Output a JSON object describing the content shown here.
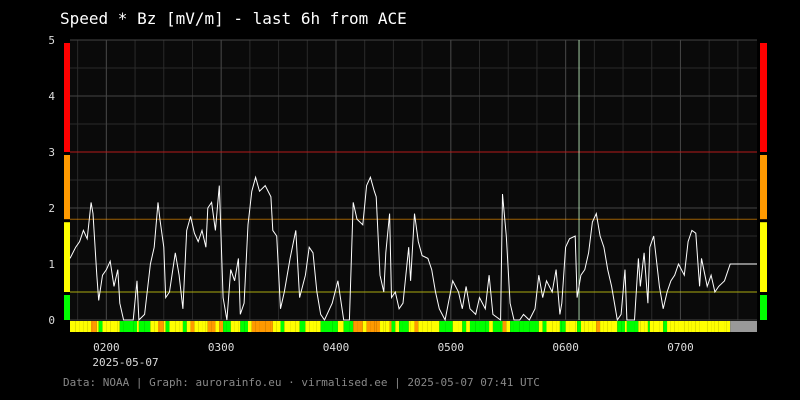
{
  "chart_data": {
    "type": "line",
    "title": "Speed * Bz [mV/m] - last 6h from ACE",
    "date_label": "2025-05-07",
    "footer": "Data: NOAA | Graph: aurorainfo.eu · virmalised.ee | 2025-05-07 07:41 UTC",
    "xlim": [
      101,
      460
    ],
    "xticks": [
      {
        "value": 120,
        "label": "0200"
      },
      {
        "value": 180,
        "label": "0300"
      },
      {
        "value": 240,
        "label": "0400"
      },
      {
        "value": 300,
        "label": "0500"
      },
      {
        "value": 360,
        "label": "0600"
      },
      {
        "value": 420,
        "label": "0700"
      }
    ],
    "ylim": [
      0,
      5
    ],
    "yticks": [
      0,
      1,
      2,
      3,
      4,
      5
    ],
    "grid": true,
    "x_minor_step": 15,
    "y_minor_step": 0.5,
    "marker_x": 367,
    "stale_after": 446,
    "stale_color": "#999999",
    "levels": [
      {
        "from": 0,
        "color": "#00ff00"
      },
      {
        "from": 0.5,
        "color": "#ffff00"
      },
      {
        "from": 1.8,
        "color": "#ff9900"
      },
      {
        "from": 3,
        "color": "#ff0000"
      }
    ],
    "series": [
      {
        "name": "Speed * Bz",
        "color": "#ffffff",
        "x": [
          101,
          104,
          106,
          108,
          110,
          112,
          113,
          115,
          116,
          118,
          120,
          122,
          124,
          126,
          127,
          129,
          134,
          136,
          137,
          140,
          143,
          145,
          147,
          148,
          150,
          151,
          153,
          156,
          158,
          160,
          162,
          164,
          166,
          168,
          170,
          172,
          173,
          175,
          177,
          179,
          181,
          183,
          185,
          187,
          189,
          190,
          192,
          194,
          196,
          198,
          200,
          203,
          206,
          207,
          209,
          211,
          213,
          216,
          219,
          221,
          224,
          226,
          228,
          230,
          232,
          234,
          238,
          241,
          244,
          247,
          249,
          251,
          254,
          256,
          258,
          260,
          261,
          263,
          265,
          266,
          268,
          269,
          271,
          273,
          275,
          278,
          279,
          281,
          283,
          285,
          288,
          290,
          292,
          294,
          297,
          301,
          304,
          306,
          308,
          310,
          313,
          315,
          318,
          320,
          322,
          326,
          327,
          329,
          331,
          333,
          336,
          338,
          341,
          344,
          346,
          348,
          350,
          353,
          355,
          357,
          358,
          360,
          362,
          365,
          366,
          368,
          370,
          372,
          374,
          376,
          378,
          380,
          382,
          384,
          387,
          389,
          391,
          392,
          396,
          398,
          399,
          401,
          403,
          404,
          406,
          409,
          411,
          413,
          415,
          417,
          419,
          422,
          424,
          426,
          428,
          430,
          431,
          434,
          436,
          438,
          440,
          443,
          444,
          446,
          460
        ],
        "values": [
          1.1,
          1.3,
          1.4,
          1.6,
          1.45,
          2.1,
          1.9,
          0.8,
          0.35,
          0.8,
          0.9,
          1.05,
          0.6,
          0.9,
          0.3,
          0,
          0,
          0.7,
          0,
          0.1,
          1.0,
          1.3,
          2.1,
          1.8,
          1.3,
          0.4,
          0.5,
          1.2,
          0.8,
          0.2,
          1.6,
          1.85,
          1.55,
          1.4,
          1.6,
          1.3,
          2.0,
          2.1,
          1.6,
          2.4,
          0.4,
          0,
          0.9,
          0.7,
          1.1,
          0.1,
          0.3,
          1.7,
          2.3,
          2.55,
          2.3,
          2.4,
          2.2,
          1.6,
          1.5,
          0.2,
          0.5,
          1.1,
          1.6,
          0.4,
          0.8,
          1.3,
          1.2,
          0.5,
          0.1,
          0,
          0.3,
          0.7,
          0,
          0,
          2.1,
          1.8,
          1.7,
          2.4,
          2.55,
          2.3,
          2.2,
          0.8,
          0.5,
          1.2,
          1.9,
          0.4,
          0.5,
          0.2,
          0.3,
          1.3,
          0.7,
          1.9,
          1.4,
          1.15,
          1.1,
          0.9,
          0.5,
          0.2,
          0,
          0.7,
          0.5,
          0.2,
          0.6,
          0.2,
          0.1,
          0.4,
          0.2,
          0.8,
          0.1,
          0,
          2.25,
          1.5,
          0.3,
          0,
          0,
          0.1,
          0,
          0.2,
          0.8,
          0.4,
          0.7,
          0.5,
          0.9,
          0.1,
          0.3,
          1.3,
          1.45,
          1.5,
          0.4,
          0.8,
          0.9,
          1.2,
          1.75,
          1.9,
          1.5,
          1.3,
          0.9,
          0.6,
          0,
          0.1,
          0.9,
          0,
          0,
          1.1,
          0.6,
          1.2,
          0.3,
          1.3,
          1.5,
          0.6,
          0.2,
          0.5,
          0.7,
          0.8,
          1.0,
          0.8,
          1.4,
          1.6,
          1.55,
          0.6,
          1.1,
          0.6,
          0.8,
          0.5,
          0.6,
          0.7,
          0.8,
          1.0,
          1.0
        ]
      }
    ]
  }
}
